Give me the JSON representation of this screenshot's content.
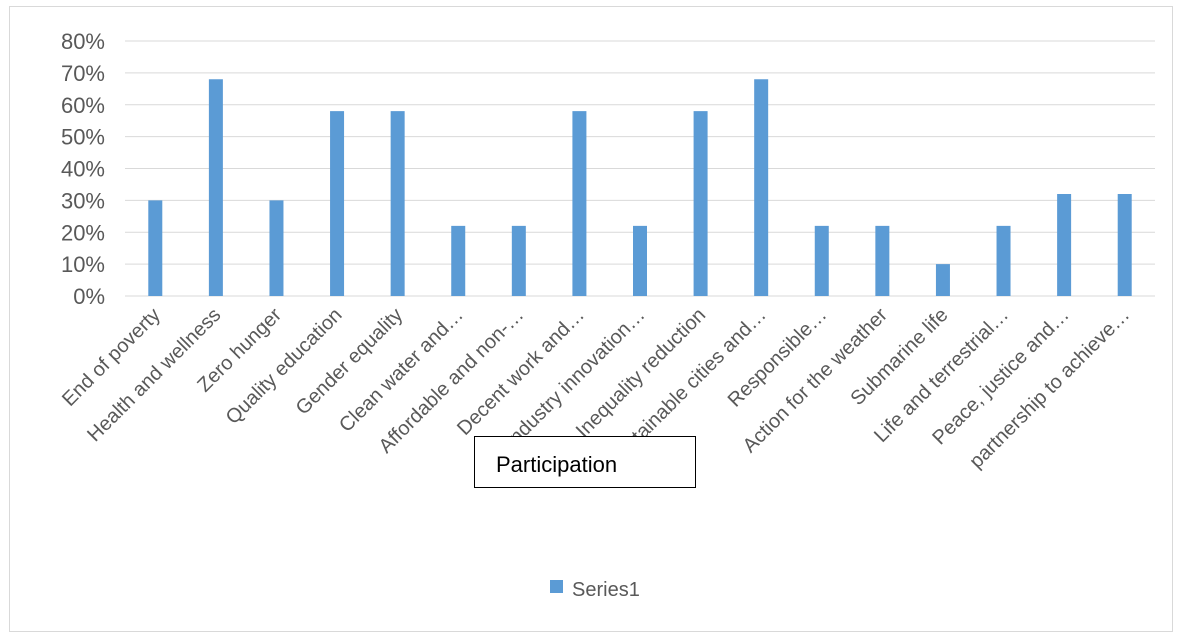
{
  "chart_data": {
    "type": "bar",
    "title": "Participation",
    "categories": [
      "End of poverty",
      "Health and wellness",
      "Zero hunger",
      "Quality education",
      "Gender equality",
      "Clean water and…",
      "Affordable and non-…",
      "Decent work and…",
      "Industry innovation…",
      "Inequality reduction",
      "Sustainable cities and…",
      "Responsible…",
      "Action for the weather",
      "Submarine life",
      "Life and terrestrial…",
      "Peace, justice and…",
      "partnership to achieve…"
    ],
    "series": [
      {
        "name": "Series1",
        "values": [
          0.3,
          0.68,
          0.3,
          0.58,
          0.58,
          0.22,
          0.22,
          0.58,
          0.22,
          0.58,
          0.68,
          0.22,
          0.22,
          0.1,
          0.22,
          0.32,
          0.32
        ]
      }
    ],
    "y_ticks": [
      "0%",
      "10%",
      "20%",
      "30%",
      "40%",
      "50%",
      "60%",
      "70%",
      "80%"
    ],
    "ylim": [
      0,
      0.8
    ],
    "grid": true,
    "legend_position": "bottom",
    "colors": {
      "bar": "#5b9bd5",
      "grid": "#d9d9d9",
      "text": "#595959"
    }
  }
}
